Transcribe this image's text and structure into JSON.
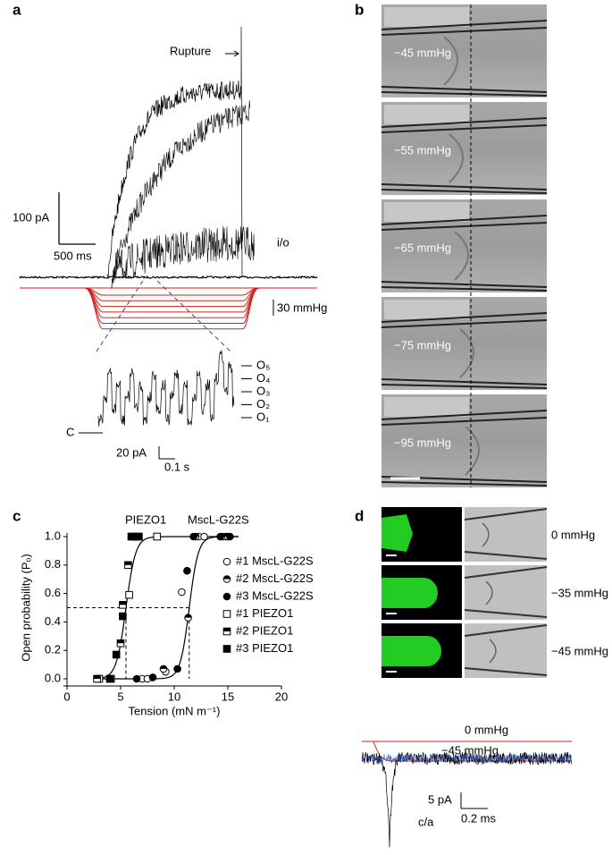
{
  "panels": {
    "a": {
      "label": "a",
      "rupture": "Rupture",
      "scale_current": "100 pA",
      "scale_time": "500 ms",
      "io": "i/o",
      "scale_pressure": "30 mmHg",
      "states": [
        "O₅",
        "O₄",
        "O₃",
        "O₂",
        "O₁"
      ],
      "closed": "C",
      "inset_current": "20 pA",
      "inset_time": "0.1 s"
    },
    "b": {
      "label": "b",
      "pressures": [
        "−45 mmHg",
        "−55 mmHg",
        "−65 mmHg",
        "−75 mmHg",
        "−95 mmHg"
      ]
    },
    "d": {
      "label": "d",
      "pressures": [
        "0 mmHg",
        "−35 mmHg",
        "−45 mmHg"
      ],
      "trace_top": "0 mmHg",
      "trace_bottom": "−45 mmHg",
      "scale_current": "5 pA",
      "scale_time": "0.2 ms",
      "trace_label": "c/a"
    }
  },
  "chart_data": {
    "type": "scatter",
    "panel_label": "c",
    "xlabel": "Tension (mN m⁻¹)",
    "ylabel": "Open probability (Pₒ)",
    "annotations": [
      "PIEZO1",
      "MscL-G22S"
    ],
    "xlim": [
      0,
      20
    ],
    "xticks": [
      0,
      5,
      10,
      15,
      20
    ],
    "ylim": [
      0,
      1
    ],
    "yticks": [
      {
        "value": 0,
        "label": "0.0"
      },
      0.2,
      0.4,
      0.6,
      0.8,
      {
        "value": 1,
        "label": "1.0"
      }
    ],
    "reference_lines": {
      "y": 0.5,
      "x": [
        5.5,
        11.4
      ]
    },
    "fits": [
      {
        "midpoint": 5.5,
        "slope": 0.45
      },
      {
        "midpoint": 11.4,
        "slope": 0.42
      }
    ],
    "series": [
      {
        "name": "#1 MscL-G22S",
        "marker": "circle-open",
        "color": "#000000",
        "x": [
          7,
          7.5,
          9.2,
          10.7,
          12.3,
          12.8,
          14.5
        ],
        "values": [
          0,
          0,
          0.05,
          0.61,
          1,
          1,
          1
        ]
      },
      {
        "name": "#2 MscL-G22S",
        "marker": "circle-half",
        "color": "#000000",
        "x": [
          9,
          11.3,
          12,
          14.8,
          15
        ],
        "values": [
          0.07,
          0.43,
          1,
          1,
          1
        ]
      },
      {
        "name": "#3 MscL-G22S",
        "marker": "circle-filled",
        "color": "#000000",
        "x": [
          6.5,
          8,
          10.3,
          11.2,
          11.8,
          14.3,
          15.2
        ],
        "values": [
          0,
          0.01,
          0.07,
          0.76,
          1,
          1,
          1
        ]
      },
      {
        "name": "#1 PIEZO1",
        "marker": "square-open",
        "color": "#000000",
        "x": [
          3,
          4.1,
          5.8,
          6.5,
          8.4
        ],
        "values": [
          0,
          0,
          0.59,
          1,
          1
        ]
      },
      {
        "name": "#2 PIEZO1",
        "marker": "square-half",
        "color": "#000000",
        "x": [
          2.8,
          5,
          5.2,
          5.7,
          6.2
        ],
        "values": [
          0,
          0.25,
          0.52,
          0.8,
          1
        ]
      },
      {
        "name": "#3 PIEZO1",
        "marker": "square-filled",
        "color": "#000000",
        "x": [
          4,
          4.6,
          5.2,
          6,
          6.7
        ],
        "values": [
          0,
          0.17,
          0.44,
          1,
          1
        ]
      }
    ]
  }
}
